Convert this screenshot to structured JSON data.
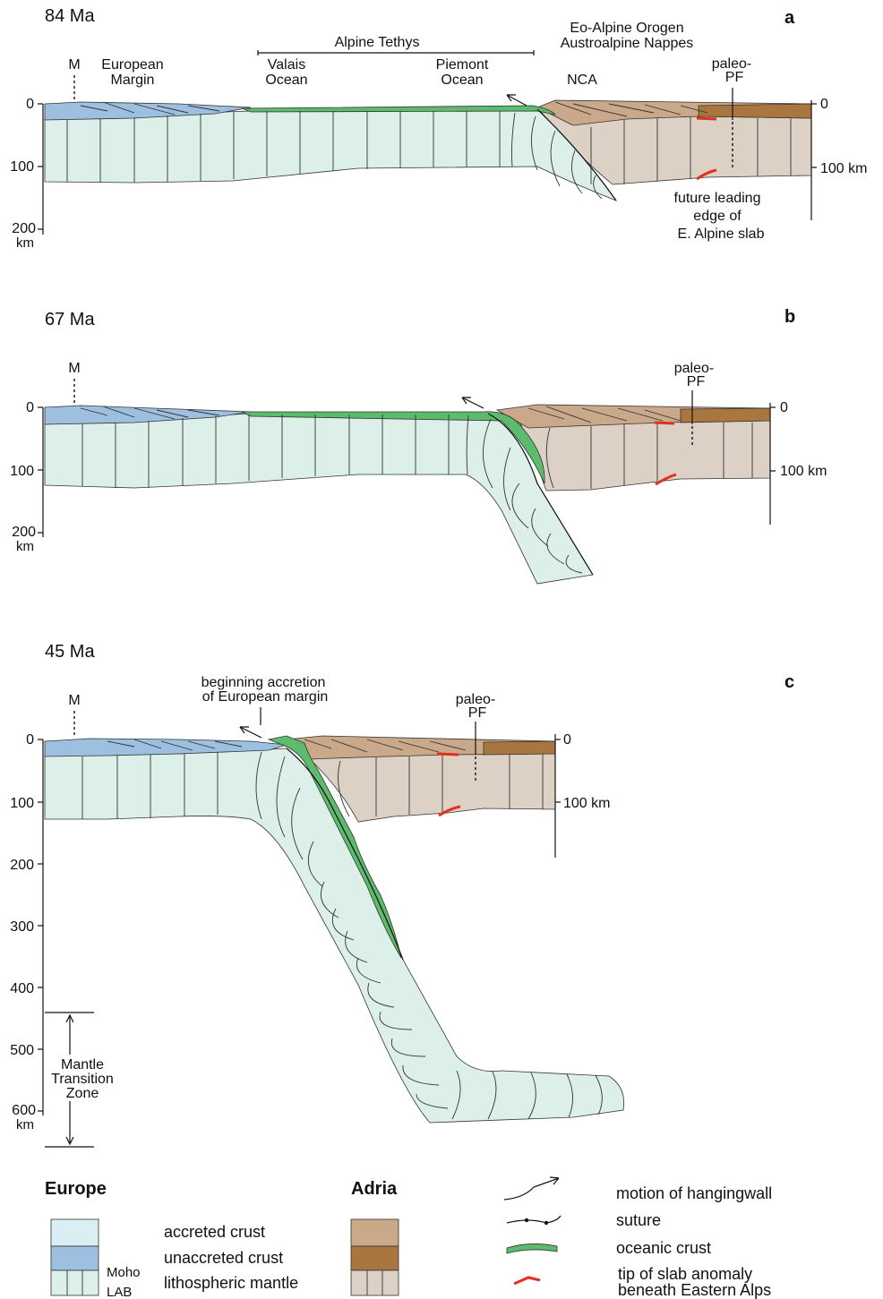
{
  "panels": [
    {
      "age": "84 Ma",
      "letter": "a",
      "labels": {
        "m": "M",
        "european_margin_1": "European",
        "european_margin_2": "Margin",
        "alpine_tethys": "Alpine Tethys",
        "valais_1": "Valais",
        "valais_2": "Ocean",
        "piemont_1": "Piemont",
        "piemont_2": "Ocean",
        "eo_alpine_1": "Eo-Alpine Orogen",
        "eo_alpine_2": "Austroalpine Nappes",
        "nca": "NCA",
        "paleo_pf_1": "paleo-",
        "paleo_pf_2": "PF",
        "future_1": "future leading",
        "future_2": "edge of",
        "future_3": "E. Alpine slab"
      },
      "depth_ticks_left": [
        "0",
        "100",
        "200",
        "km"
      ],
      "depth_ticks_right": [
        "0",
        "100 km"
      ]
    },
    {
      "age": "67 Ma",
      "letter": "b",
      "labels": {
        "m": "M",
        "paleo_pf_1": "paleo-",
        "paleo_pf_2": "PF"
      },
      "depth_ticks_left": [
        "0",
        "100",
        "200",
        "km"
      ],
      "depth_ticks_right": [
        "0",
        "100 km"
      ]
    },
    {
      "age": "45 Ma",
      "letter": "c",
      "labels": {
        "m": "M",
        "accretion_1": "beginning accretion",
        "accretion_2": "of European margin",
        "paleo_pf_1": "paleo-",
        "paleo_pf_2": "PF",
        "mtz_1": "Mantle",
        "mtz_2": "Transition",
        "mtz_3": "Zone"
      },
      "depth_ticks_left": [
        "0",
        "100",
        "200",
        "300",
        "400",
        "500",
        "600",
        "km"
      ],
      "depth_ticks_right": [
        "0",
        "100 km"
      ]
    }
  ],
  "legend": {
    "europe": {
      "title": "Europe",
      "items": [
        "accreted crust",
        "unaccreted crust",
        "lithospheric mantle"
      ],
      "moho": "Moho",
      "lab": "LAB"
    },
    "adria": {
      "title": "Adria"
    },
    "symbols": [
      "motion of hangingwall",
      "suture",
      "oceanic crust",
      "tip of slab anomaly",
      "beneath Eastern Alps"
    ]
  },
  "colors": {
    "europe_accreted_crust": "#dbeef4",
    "europe_unaccreted_crust": "#9dbfe0",
    "europe_mantle": "#dcefe8",
    "oceanic_crust": "#5dbb6e",
    "adria_accreted_crust": "#c9a98a",
    "adria_unaccreted_crust": "#a9763f",
    "adria_mantle": "#ddd0c4",
    "slab_tip": "#e03020"
  }
}
